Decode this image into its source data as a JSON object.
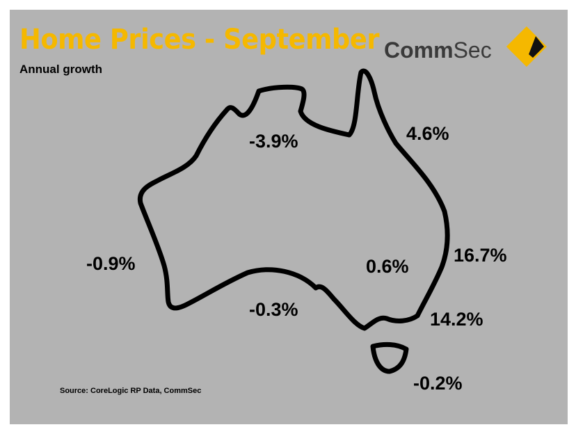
{
  "header": {
    "title": "Home Prices - September",
    "subtitle": "Annual growth",
    "brand_bold": "Comm",
    "brand_light": "Sec"
  },
  "map": {
    "regions": {
      "nt": "-3.9%",
      "qld": "4.6%",
      "nsw_north": "16.7%",
      "nsw_south": "14.2%",
      "act": "0.6%",
      "wa": "-0.9%",
      "sa": "-0.3%",
      "tas": "-0.2%"
    }
  },
  "footer": {
    "source": "Source: CoreLogic RP Data, CommSec"
  },
  "colors": {
    "panel": "#b3b3b3",
    "title": "#f5b800",
    "logo_yellow": "#f5b800",
    "outline": "#000000"
  }
}
